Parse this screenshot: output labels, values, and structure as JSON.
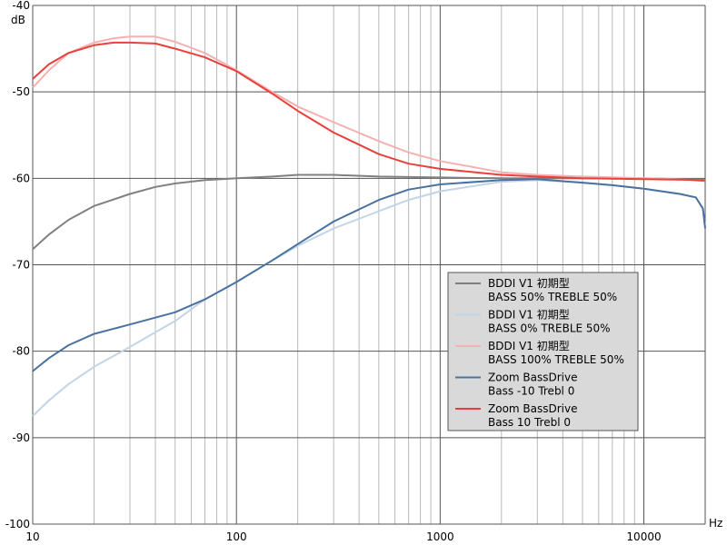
{
  "chart_data": {
    "type": "line",
    "title": "",
    "ylabel": "dB",
    "xlabel": "Hz",
    "xscale": "log",
    "xlim": [
      10,
      20000
    ],
    "ylim": [
      -100,
      -40
    ],
    "grid": true,
    "legend_placement": "lower-right",
    "x_ticks": [
      {
        "value": 10,
        "label": "10"
      },
      {
        "value": 100,
        "label": "100"
      },
      {
        "value": 1000,
        "label": "1000"
      },
      {
        "value": 10000,
        "label": "10000"
      }
    ],
    "y_ticks": [
      {
        "value": -40,
        "label": "-40"
      },
      {
        "value": -50,
        "label": "-50"
      },
      {
        "value": -60,
        "label": "-60"
      },
      {
        "value": -70,
        "label": "-70"
      },
      {
        "value": -80,
        "label": "-80"
      },
      {
        "value": -90,
        "label": "-90"
      },
      {
        "value": -100,
        "label": "-100"
      }
    ],
    "series": [
      {
        "name": "BDDI V1 初期型\nBASS 50% TREBLE 50%",
        "color": "#808080",
        "x": [
          10,
          12,
          15,
          20,
          30,
          40,
          50,
          70,
          100,
          150,
          200,
          300,
          500,
          1000,
          2000,
          5000,
          10000,
          15000,
          20000
        ],
        "y": [
          -68.2,
          -66.5,
          -64.8,
          -63.2,
          -61.8,
          -61.0,
          -60.6,
          -60.2,
          -60.0,
          -59.8,
          -59.6,
          -59.6,
          -59.8,
          -59.9,
          -60.0,
          -60.0,
          -60.0,
          -60.1,
          -60.3
        ]
      },
      {
        "name": "BDDI V1 初期型\nBASS 0% TREBLE 50%",
        "color": "#c3d4e6",
        "x": [
          10,
          12,
          15,
          20,
          30,
          50,
          70,
          100,
          150,
          200,
          300,
          500,
          700,
          1000,
          2000,
          3000,
          5000,
          7000,
          10000,
          15000,
          18000,
          19500,
          20000
        ],
        "y": [
          -87.5,
          -85.7,
          -83.8,
          -81.8,
          -79.5,
          -76.5,
          -74.0,
          -72.0,
          -69.5,
          -67.8,
          -65.8,
          -63.8,
          -62.5,
          -61.5,
          -60.4,
          -60.2,
          -60.5,
          -60.8,
          -61.2,
          -61.8,
          -62.2,
          -63.5,
          -65.8
        ]
      },
      {
        "name": "BDDI V1 初期型\nBASS 100% TREBLE 50%",
        "color": "#f5b0b0",
        "x": [
          10,
          12,
          15,
          20,
          25,
          30,
          40,
          50,
          70,
          100,
          150,
          200,
          300,
          500,
          700,
          1000,
          2000,
          3000,
          5000,
          10000,
          20000
        ],
        "y": [
          -49.5,
          -47.5,
          -45.5,
          -44.3,
          -43.8,
          -43.6,
          -43.6,
          -44.2,
          -45.5,
          -47.5,
          -50.0,
          -51.7,
          -53.5,
          -55.7,
          -57.0,
          -58.0,
          -59.3,
          -59.6,
          -59.8,
          -60.0,
          -60.2
        ]
      },
      {
        "name": "Zoom BassDrive\nBass -10 Trebl 0",
        "color": "#4a72a0",
        "x": [
          10,
          12,
          15,
          20,
          30,
          50,
          70,
          100,
          150,
          200,
          300,
          500,
          700,
          1000,
          2000,
          3000,
          5000,
          7000,
          10000,
          15000,
          18000,
          19500,
          20000
        ],
        "y": [
          -82.3,
          -80.8,
          -79.3,
          -78.0,
          -76.9,
          -75.5,
          -74.0,
          -72.0,
          -69.5,
          -67.6,
          -65.0,
          -62.5,
          -61.3,
          -60.7,
          -60.2,
          -60.1,
          -60.5,
          -60.8,
          -61.2,
          -61.8,
          -62.2,
          -63.5,
          -65.8
        ]
      },
      {
        "name": "Zoom BassDrive\nBass 10 Trebl 0",
        "color": "#e8403a",
        "x": [
          10,
          12,
          15,
          20,
          25,
          30,
          40,
          50,
          70,
          100,
          150,
          200,
          300,
          500,
          700,
          1000,
          2000,
          3000,
          5000,
          10000,
          20000
        ],
        "y": [
          -48.5,
          -46.8,
          -45.5,
          -44.6,
          -44.3,
          -44.3,
          -44.4,
          -45.0,
          -46.0,
          -47.6,
          -50.2,
          -52.2,
          -54.7,
          -57.2,
          -58.3,
          -58.9,
          -59.6,
          -59.8,
          -60.0,
          -60.1,
          -60.2
        ]
      }
    ]
  }
}
